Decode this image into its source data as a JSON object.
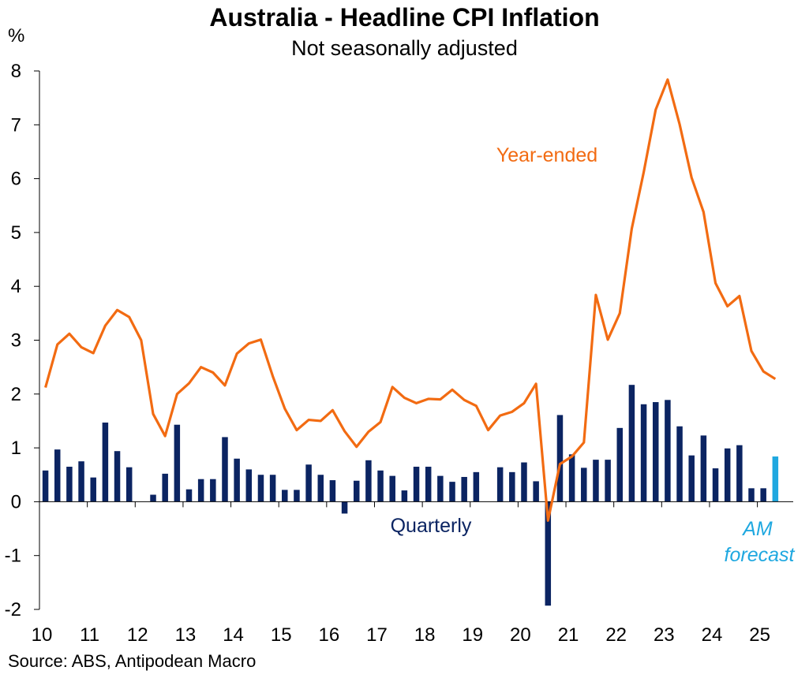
{
  "title": "Australia - Headline CPI Inflation",
  "subtitle": "Not seasonally adjusted",
  "y_unit": "%",
  "source": "Source: ABS, Antipodean Macro",
  "colors": {
    "quarterly": "#0B2462",
    "year_ended": "#F26B12",
    "forecast": "#1FA8E0",
    "axis": "#000000"
  },
  "chart_data": {
    "type": "bar+line",
    "ylim": [
      -2,
      8
    ],
    "yticks": [
      -2,
      -1,
      0,
      1,
      2,
      3,
      4,
      5,
      6,
      7,
      8
    ],
    "xticks": [
      "10",
      "11",
      "12",
      "13",
      "14",
      "15",
      "16",
      "17",
      "18",
      "19",
      "20",
      "21",
      "22",
      "23",
      "24",
      "25"
    ],
    "x_start_year": 2010,
    "annotations": {
      "year_ended": "Year-ended",
      "quarterly": "Quarterly",
      "forecast_line1": "AM",
      "forecast_line2": "forecast"
    },
    "quarterly": {
      "name": "Quarterly",
      "values": [
        0.58,
        0.97,
        0.65,
        0.75,
        0.45,
        1.47,
        0.94,
        0.64,
        0.0,
        0.13,
        0.52,
        1.43,
        0.23,
        0.42,
        0.42,
        1.2,
        0.8,
        0.6,
        0.5,
        0.5,
        0.22,
        0.22,
        0.69,
        0.5,
        0.4,
        -0.22,
        0.39,
        0.77,
        0.58,
        0.48,
        0.21,
        0.65,
        0.65,
        0.48,
        0.37,
        0.46,
        0.55,
        0.0,
        0.64,
        0.55,
        0.73,
        0.38,
        -1.93,
        1.61,
        0.88,
        0.63,
        0.78,
        0.78,
        1.37,
        2.17,
        1.81,
        1.85,
        1.89,
        1.4,
        0.86,
        1.23,
        0.62,
        0.99,
        1.05,
        0.25,
        0.25,
        0.84
      ]
    },
    "year_ended": {
      "name": "Year-ended",
      "values": [
        2.12,
        2.92,
        3.12,
        2.87,
        2.76,
        3.27,
        3.56,
        3.43,
        3.0,
        1.63,
        1.22,
        2.0,
        2.2,
        2.5,
        2.4,
        2.16,
        2.75,
        2.94,
        3.01,
        2.33,
        1.73,
        1.33,
        1.52,
        1.5,
        1.7,
        1.31,
        1.02,
        1.3,
        1.48,
        2.13,
        1.93,
        1.83,
        1.91,
        1.9,
        2.08,
        1.89,
        1.78,
        1.33,
        1.6,
        1.67,
        1.83,
        2.19,
        -0.35,
        0.7,
        0.84,
        1.1,
        3.84,
        3.01,
        3.5,
        5.07,
        6.12,
        7.28,
        7.84,
        7.01,
        6.02,
        5.38,
        4.06,
        3.63,
        3.82,
        2.8,
        2.42,
        2.28
      ]
    }
  }
}
